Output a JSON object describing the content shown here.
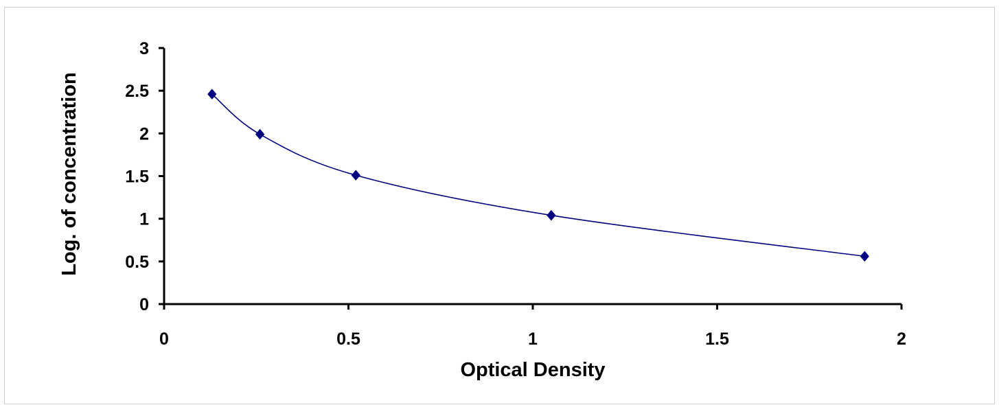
{
  "chart_data": {
    "type": "line",
    "title": "",
    "xlabel": "Optical Density",
    "ylabel": "Log. of concentration",
    "xlim": [
      0,
      2
    ],
    "ylim": [
      0,
      3
    ],
    "xticks": [
      "0",
      "0.5",
      "1",
      "1.5",
      "2"
    ],
    "yticks": [
      "0",
      "0.5",
      "1",
      "1.5",
      "2",
      "2.5",
      "3"
    ],
    "grid": false,
    "legend": "none",
    "series": [
      {
        "x": [
          0.13,
          0.26,
          0.52,
          1.05,
          1.9
        ],
        "y": [
          2.46,
          1.99,
          1.51,
          1.04,
          0.56
        ],
        "color": "#000080",
        "marker": "diamond",
        "smooth": true
      }
    ]
  }
}
